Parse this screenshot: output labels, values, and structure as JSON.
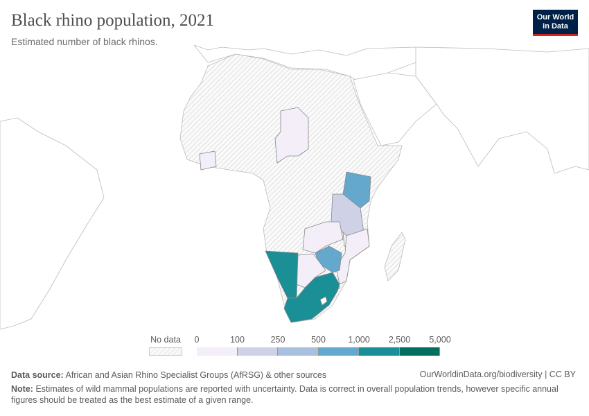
{
  "title": "Black rhino population, 2021",
  "subtitle": "Estimated number of black rhinos.",
  "logo": {
    "line1": "Our World",
    "line2": "in Data",
    "bg": "#002147",
    "accent": "#ce261e"
  },
  "legend": {
    "no_data_label": "No data",
    "ticks": [
      "0",
      "100",
      "250",
      "500",
      "1,000",
      "2,500",
      "5,000"
    ],
    "colors": [
      "#f3eef7",
      "#cfd1e6",
      "#a8bfdd",
      "#64a8cd",
      "#1a8f96",
      "#006f5d"
    ]
  },
  "map_data": {
    "year": 2021,
    "bins": [
      {
        "country": "Chad",
        "bin": 0
      },
      {
        "country": "Côte d'Ivoire",
        "bin": 0
      },
      {
        "country": "Kenya",
        "bin": 3
      },
      {
        "country": "Tanzania",
        "bin": 1
      },
      {
        "country": "Zambia",
        "bin": 0
      },
      {
        "country": "Malawi",
        "bin": 0
      },
      {
        "country": "Mozambique",
        "bin": 0
      },
      {
        "country": "Zimbabwe",
        "bin": 3
      },
      {
        "country": "Botswana",
        "bin": 0
      },
      {
        "country": "Eswatini",
        "bin": 0
      },
      {
        "country": "Namibia",
        "bin": 4
      },
      {
        "country": "South Africa",
        "bin": 4
      }
    ]
  },
  "footer": {
    "source_label": "Data source:",
    "source_text": "African and Asian Rhino Specialist Groups (AfRSG) & other sources",
    "url": "OurWorldinData.org/biodiversity | CC BY",
    "note_label": "Note:",
    "note_text": "Estimates of wild mammal populations are reported with uncertainty. Data is correct in overall population trends, however specific annual figures should be treated as the best estimate of a given range."
  }
}
